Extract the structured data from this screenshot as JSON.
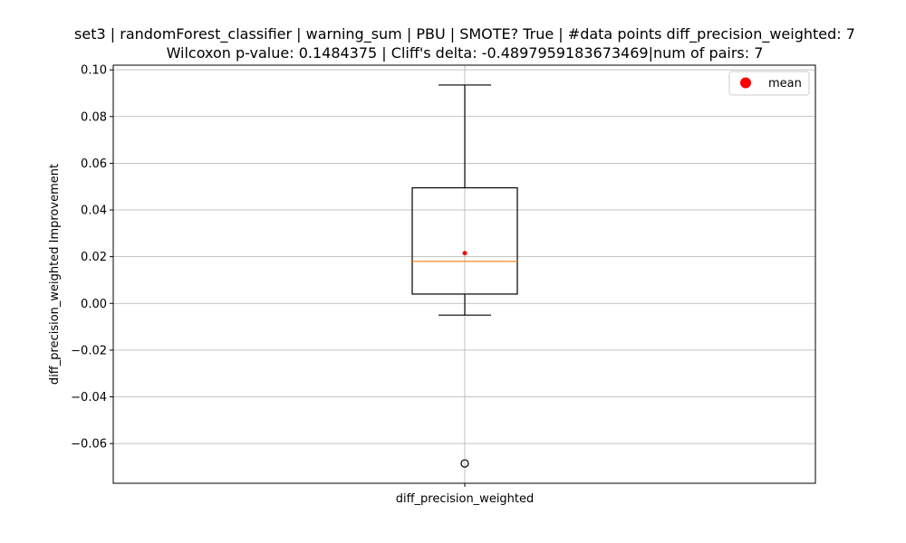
{
  "chart_data": {
    "type": "box",
    "title_lines": [
      "set3 | randomForest_classifier | warning_sum | PBU | SMOTE? True | #data points diff_precision_weighted: 7",
      "Wilcoxon p-value: 0.1484375 | Cliff's delta: -0.4897959183673469|num of pairs: 7"
    ],
    "xlabel": "",
    "ylabel": "diff_precision_weighted Improvement",
    "categories": [
      "diff_precision_weighted"
    ],
    "ylim": [
      -0.077,
      0.102
    ],
    "yticks": [
      -0.06,
      -0.04,
      -0.02,
      0.0,
      0.02,
      0.04,
      0.06,
      0.08,
      0.1
    ],
    "ytick_labels": [
      "−0.06",
      "−0.04",
      "−0.02",
      "0.00",
      "0.02",
      "0.04",
      "0.06",
      "0.08",
      "0.10"
    ],
    "grid": true,
    "box": {
      "whisker_low": -0.005,
      "q1": 0.004,
      "median": 0.018,
      "q3": 0.0495,
      "whisker_high": 0.0935,
      "mean": 0.0215,
      "outliers": [
        -0.0685
      ]
    },
    "legend": {
      "label": "mean",
      "placement": "upper-right"
    },
    "colors": {
      "box": "#000000",
      "median": "#ff7f0e",
      "mean": "#ff0000",
      "grid": "#b0b0b0"
    }
  }
}
